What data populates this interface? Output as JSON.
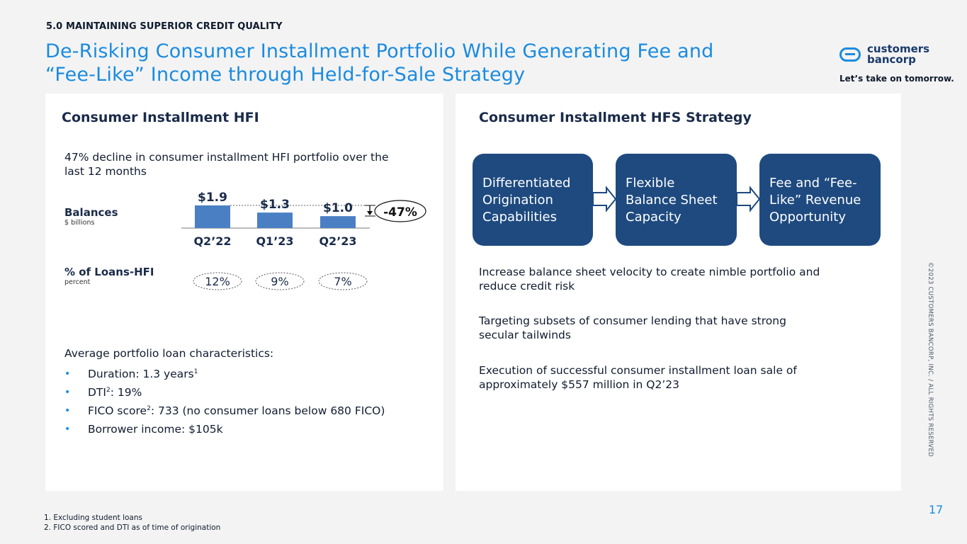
{
  "header": {
    "section": "5.0 MAINTAINING SUPERIOR CREDIT QUALITY",
    "title_line1": "De-Risking Consumer Installment Portfolio While Generating Fee and",
    "title_line2": "“Fee-Like” Income through Held-for-Sale Strategy"
  },
  "brand": {
    "logo_line1": "customers",
    "logo_line2": "bancorp",
    "tagline": "Let’s take on tomorrow.",
    "accent_color": "#1a8be0",
    "navy_color": "#1e4a7f",
    "bar_color": "#4a7fc4"
  },
  "left": {
    "title": "Consumer Installment HFI",
    "intro_line1": "47% decline in consumer installment HFI portfolio over the",
    "intro_line2": "last 12 months",
    "balances_label": "Balances",
    "balances_unit": "$ billions",
    "pct_label": "% of Loans-HFI",
    "pct_unit": "percent",
    "decline_label": "-47%",
    "characteristics": {
      "lead": "Average portfolio loan characteristics:",
      "items": [
        {
          "text": "Duration: 1.3 years",
          "sup": "1",
          "after": ""
        },
        {
          "text": "DTI",
          "sup": "2",
          "after": ": 19%"
        },
        {
          "text": "FICO score",
          "sup": "2",
          "after": ": 733 (no consumer loans below 680 FICO)"
        },
        {
          "text": "Borrower income: $105k",
          "sup": "",
          "after": ""
        }
      ]
    }
  },
  "chart_data": {
    "type": "bar",
    "categories": [
      "Q2’22",
      "Q1’23",
      "Q2’23"
    ],
    "values": [
      1.9,
      1.3,
      1.0
    ],
    "value_labels": [
      "$1.9",
      "$1.3",
      "$1.0"
    ],
    "pct_of_loans": [
      "12%",
      "9%",
      "7%"
    ],
    "ylabel": "Balances",
    "ylim": [
      0,
      1.9
    ]
  },
  "right": {
    "title": "Consumer Installment HFS Strategy",
    "flow": [
      {
        "line1": "Differentiated",
        "line2": "Origination",
        "line3": "Capabilities"
      },
      {
        "line1": "Flexible",
        "line2": "Balance Sheet",
        "line3": "Capacity"
      },
      {
        "line1": "Fee and “Fee-",
        "line2": "Like” Revenue",
        "line3": "Opportunity"
      }
    ],
    "points": [
      {
        "line1": "Increase balance sheet velocity to create nimble portfolio and",
        "line2": "reduce credit risk"
      },
      {
        "line1": "Targeting subsets of consumer lending that have strong",
        "line2": "secular tailwinds"
      },
      {
        "line1": "Execution of successful consumer installment loan sale of",
        "line2": "approximately $557 million in Q2’23"
      }
    ]
  },
  "footer": {
    "copyright": "©2023 CUSTOMERS BANCORP, INC. / ALL RIGHTS RESERVED",
    "page_number": "17",
    "footnote1": "1.   Excluding student loans",
    "footnote2": "2.   FICO scored and DTI as of time of origination"
  }
}
